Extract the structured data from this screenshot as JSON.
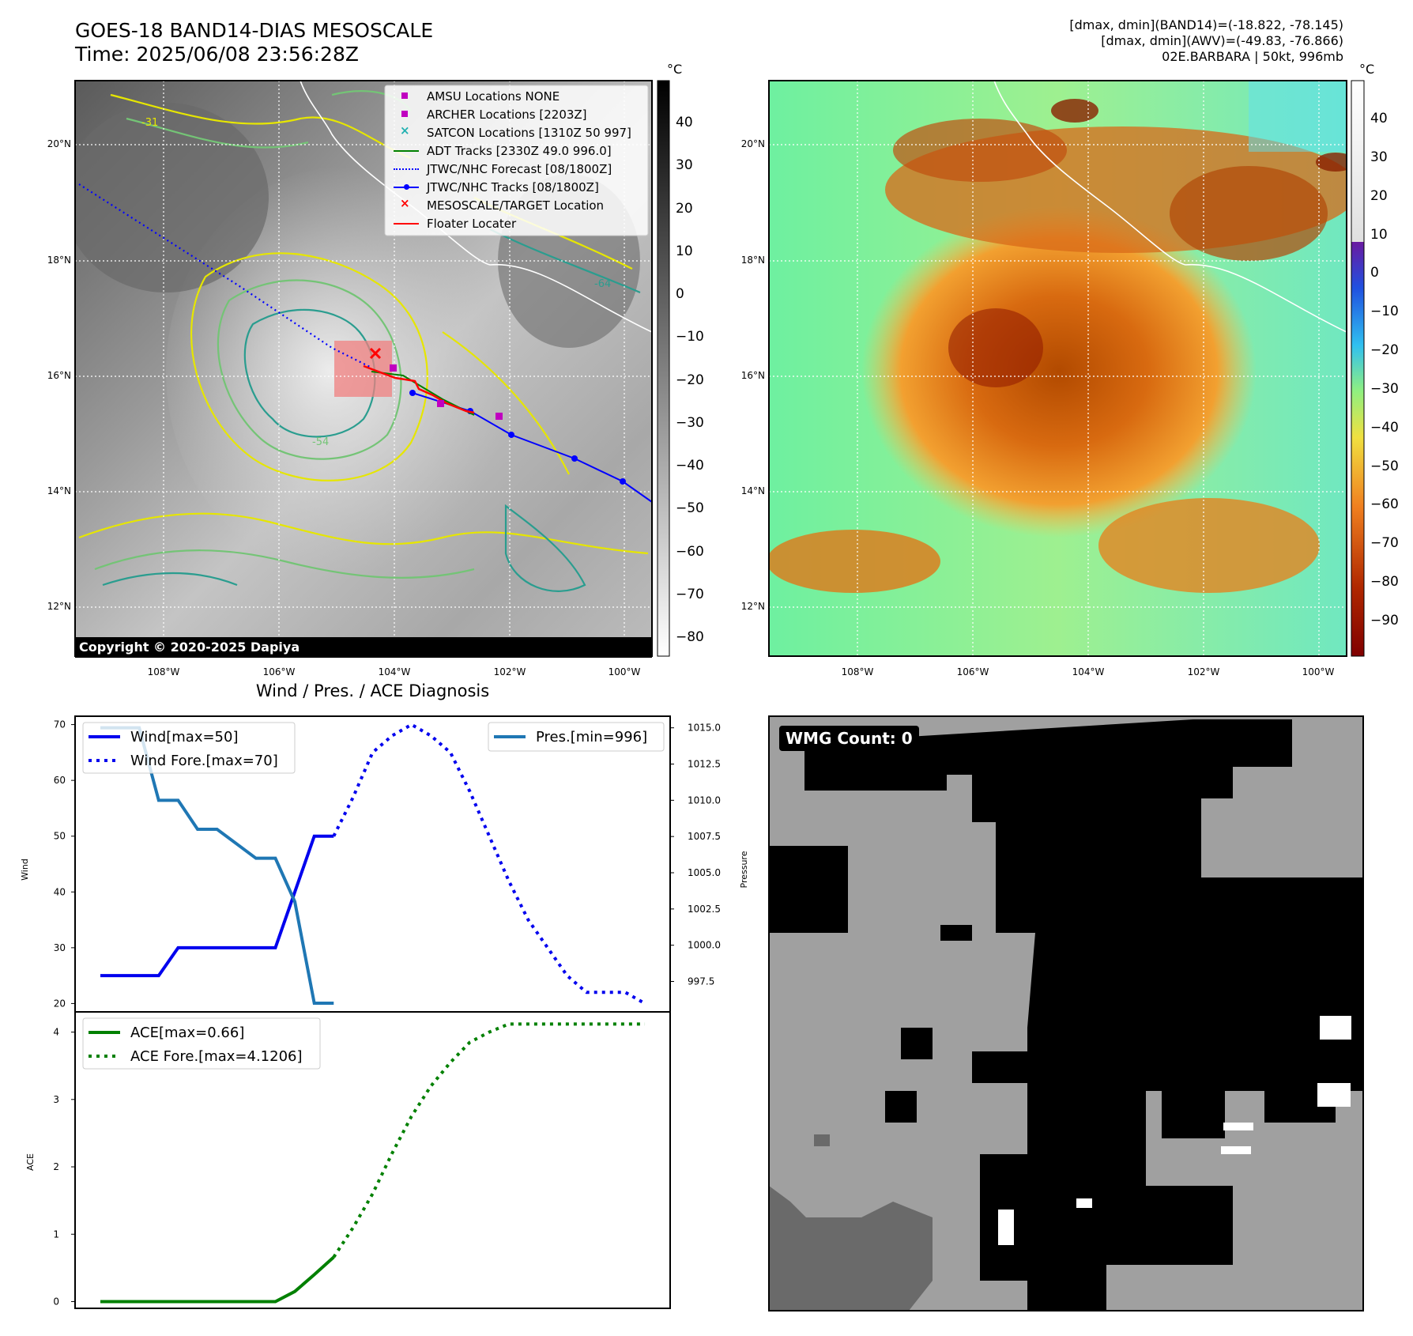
{
  "header": {
    "title_line1": "GOES-18 BAND14-DIAS MESOSCALE",
    "title_line2": "Time: 2025/06/08 23:56:28Z",
    "info_line1": "[dmax, dmin](BAND14)=(-18.822, -78.145)",
    "info_line2": "[dmax, dmin](AWV)=(-49.83, -76.866)",
    "info_line3": "02E.BARBARA | 50kt, 996mb"
  },
  "map_axes": {
    "lon_labels": [
      "108°W",
      "106°W",
      "104°W",
      "102°W",
      "100°W"
    ],
    "lat_labels": [
      "20°N",
      "18°N",
      "16°N",
      "14°N",
      "12°N"
    ]
  },
  "ir_panel": {
    "colorbar_unit": "°C",
    "colorbar_ticks": [
      "40",
      "30",
      "20",
      "10",
      "0",
      "−10",
      "−20",
      "−30",
      "−40",
      "−50",
      "−60",
      "−70",
      "−80"
    ],
    "copyright": "Copyright © 2020-2025 Dapiya",
    "contour_labels": [
      "-31",
      "-54",
      "-64"
    ],
    "legend": [
      {
        "label": "AMSU Locations NONE",
        "marker": "square",
        "color": "#c000c0"
      },
      {
        "label": "ARCHER Locations [2203Z]",
        "marker": "square",
        "color": "#c000c0"
      },
      {
        "label": "SATCON Locations [1310Z 50 997]",
        "marker": "x",
        "color": "#20b0b0"
      },
      {
        "label": "ADT Tracks [2330Z 49.0 996.0]",
        "marker": "line",
        "color": "#008000"
      },
      {
        "label": "JTWC/NHC Forecast [08/1800Z]",
        "marker": "dotted",
        "color": "#0000ff"
      },
      {
        "label": "JTWC/NHC Tracks [08/1800Z]",
        "marker": "line-dot",
        "color": "#0000ff"
      },
      {
        "label": "MESOSCALE/TARGET Location",
        "marker": "x",
        "color": "#ff0000"
      },
      {
        "label": "Floater Locater",
        "marker": "line",
        "color": "#ff0000"
      }
    ]
  },
  "wv_panel": {
    "colorbar_unit": "°C",
    "colorbar_ticks": [
      "40",
      "30",
      "20",
      "10",
      "0",
      "−10",
      "−20",
      "−30",
      "−40",
      "−50",
      "−60",
      "−70",
      "−80",
      "−90"
    ]
  },
  "wmg_panel": {
    "label": "WMG Count: 0"
  },
  "chart_data": [
    {
      "type": "line",
      "title": "Wind / Pres. / ACE Diagnosis",
      "ylabel": "Wind",
      "y2label": "Pressure",
      "ylim": [
        18.5,
        71.5
      ],
      "y2lim": [
        995.4,
        1015.8
      ],
      "yticks": [
        "20",
        "30",
        "40",
        "50",
        "60",
        "70"
      ],
      "y2ticks": [
        "997.5",
        "1000.0",
        "1002.5",
        "1005.0",
        "1007.5",
        "1010.0",
        "1012.5",
        "1015.0"
      ],
      "series": [
        {
          "name": "Wind[max=50]",
          "axis": "left",
          "style": "solid",
          "color": "#0000ee",
          "x": [
            0,
            3,
            4,
            5,
            6,
            7,
            8,
            9,
            10,
            11,
            12
          ],
          "y": [
            25,
            25,
            30,
            30,
            30,
            30,
            30,
            30,
            40,
            50,
            50
          ]
        },
        {
          "name": "Wind Fore.[max=70]",
          "axis": "left",
          "style": "dotted",
          "color": "#0000ee",
          "x": [
            12,
            13,
            14,
            15,
            16,
            17,
            18,
            19,
            20,
            21,
            22,
            23,
            24,
            25,
            26,
            27,
            28
          ],
          "y": [
            50,
            57,
            65,
            68,
            70,
            68,
            65,
            58,
            50,
            42,
            35,
            30,
            25,
            22,
            22,
            22,
            20
          ]
        },
        {
          "name": "Pres.[min=996]",
          "axis": "right",
          "style": "solid",
          "color": "#1f77b4",
          "x": [
            0,
            1,
            2,
            3,
            4,
            5,
            6,
            7,
            8,
            9,
            10,
            11,
            12
          ],
          "y": [
            1015,
            1015,
            1015,
            1010,
            1010,
            1008,
            1008,
            1007,
            1006,
            1006,
            1003,
            996,
            996
          ]
        }
      ]
    },
    {
      "type": "line",
      "ylabel": "ACE",
      "ylim": [
        -0.1,
        4.3
      ],
      "yticks": [
        "0",
        "1",
        "2",
        "3",
        "4"
      ],
      "series": [
        {
          "name": "ACE[max=0.66]",
          "style": "solid",
          "color": "#008000",
          "x": [
            0,
            1,
            2,
            3,
            4,
            5,
            6,
            7,
            8,
            9,
            10,
            11,
            12
          ],
          "y": [
            0,
            0,
            0,
            0,
            0,
            0,
            0,
            0,
            0,
            0,
            0.15,
            0.4,
            0.66
          ]
        },
        {
          "name": "ACE Fore.[max=4.1206]",
          "style": "dotted",
          "color": "#008000",
          "x": [
            12,
            13,
            14,
            15,
            16,
            17,
            18,
            19,
            20,
            21,
            22,
            23,
            24,
            25,
            26,
            27,
            28
          ],
          "y": [
            0.66,
            1.1,
            1.6,
            2.2,
            2.75,
            3.2,
            3.55,
            3.85,
            4.0,
            4.12,
            4.12,
            4.12,
            4.12,
            4.12,
            4.12,
            4.12,
            4.12
          ]
        }
      ]
    }
  ]
}
